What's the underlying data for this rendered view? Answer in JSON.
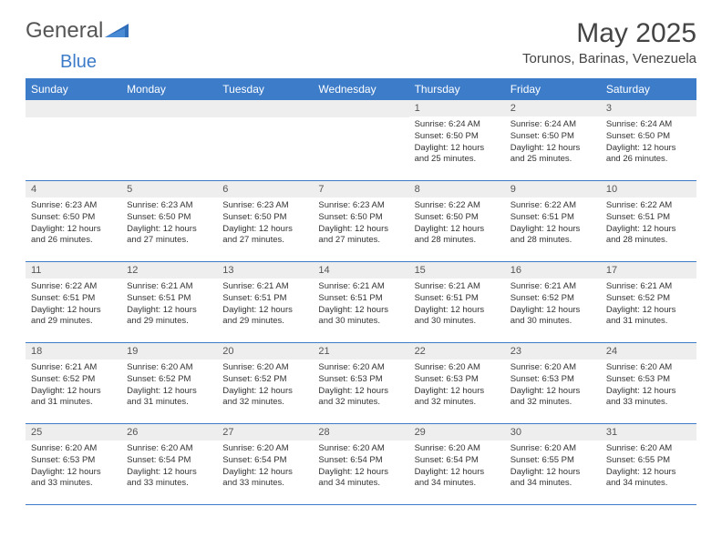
{
  "logo": {
    "text1": "General",
    "text2": "Blue"
  },
  "title": "May 2025",
  "location": "Torunos, Barinas, Venezuela",
  "colors": {
    "header_bg": "#3d7cc9",
    "header_fg": "#ffffff",
    "daynum_bg": "#eeeeee",
    "row_border": "#3d7cc9",
    "logo_accent": "#3d7cc9"
  },
  "font": {
    "body_size_pt": 9.5,
    "header_size_pt": 12,
    "title_size_pt": 30
  },
  "daynames": [
    "Sunday",
    "Monday",
    "Tuesday",
    "Wednesday",
    "Thursday",
    "Friday",
    "Saturday"
  ],
  "weeks": [
    [
      null,
      null,
      null,
      null,
      {
        "n": "1",
        "sr": "6:24 AM",
        "ss": "6:50 PM",
        "dl": "12 hours and 25 minutes."
      },
      {
        "n": "2",
        "sr": "6:24 AM",
        "ss": "6:50 PM",
        "dl": "12 hours and 25 minutes."
      },
      {
        "n": "3",
        "sr": "6:24 AM",
        "ss": "6:50 PM",
        "dl": "12 hours and 26 minutes."
      }
    ],
    [
      {
        "n": "4",
        "sr": "6:23 AM",
        "ss": "6:50 PM",
        "dl": "12 hours and 26 minutes."
      },
      {
        "n": "5",
        "sr": "6:23 AM",
        "ss": "6:50 PM",
        "dl": "12 hours and 27 minutes."
      },
      {
        "n": "6",
        "sr": "6:23 AM",
        "ss": "6:50 PM",
        "dl": "12 hours and 27 minutes."
      },
      {
        "n": "7",
        "sr": "6:23 AM",
        "ss": "6:50 PM",
        "dl": "12 hours and 27 minutes."
      },
      {
        "n": "8",
        "sr": "6:22 AM",
        "ss": "6:50 PM",
        "dl": "12 hours and 28 minutes."
      },
      {
        "n": "9",
        "sr": "6:22 AM",
        "ss": "6:51 PM",
        "dl": "12 hours and 28 minutes."
      },
      {
        "n": "10",
        "sr": "6:22 AM",
        "ss": "6:51 PM",
        "dl": "12 hours and 28 minutes."
      }
    ],
    [
      {
        "n": "11",
        "sr": "6:22 AM",
        "ss": "6:51 PM",
        "dl": "12 hours and 29 minutes."
      },
      {
        "n": "12",
        "sr": "6:21 AM",
        "ss": "6:51 PM",
        "dl": "12 hours and 29 minutes."
      },
      {
        "n": "13",
        "sr": "6:21 AM",
        "ss": "6:51 PM",
        "dl": "12 hours and 29 minutes."
      },
      {
        "n": "14",
        "sr": "6:21 AM",
        "ss": "6:51 PM",
        "dl": "12 hours and 30 minutes."
      },
      {
        "n": "15",
        "sr": "6:21 AM",
        "ss": "6:51 PM",
        "dl": "12 hours and 30 minutes."
      },
      {
        "n": "16",
        "sr": "6:21 AM",
        "ss": "6:52 PM",
        "dl": "12 hours and 30 minutes."
      },
      {
        "n": "17",
        "sr": "6:21 AM",
        "ss": "6:52 PM",
        "dl": "12 hours and 31 minutes."
      }
    ],
    [
      {
        "n": "18",
        "sr": "6:21 AM",
        "ss": "6:52 PM",
        "dl": "12 hours and 31 minutes."
      },
      {
        "n": "19",
        "sr": "6:20 AM",
        "ss": "6:52 PM",
        "dl": "12 hours and 31 minutes."
      },
      {
        "n": "20",
        "sr": "6:20 AM",
        "ss": "6:52 PM",
        "dl": "12 hours and 32 minutes."
      },
      {
        "n": "21",
        "sr": "6:20 AM",
        "ss": "6:53 PM",
        "dl": "12 hours and 32 minutes."
      },
      {
        "n": "22",
        "sr": "6:20 AM",
        "ss": "6:53 PM",
        "dl": "12 hours and 32 minutes."
      },
      {
        "n": "23",
        "sr": "6:20 AM",
        "ss": "6:53 PM",
        "dl": "12 hours and 32 minutes."
      },
      {
        "n": "24",
        "sr": "6:20 AM",
        "ss": "6:53 PM",
        "dl": "12 hours and 33 minutes."
      }
    ],
    [
      {
        "n": "25",
        "sr": "6:20 AM",
        "ss": "6:53 PM",
        "dl": "12 hours and 33 minutes."
      },
      {
        "n": "26",
        "sr": "6:20 AM",
        "ss": "6:54 PM",
        "dl": "12 hours and 33 minutes."
      },
      {
        "n": "27",
        "sr": "6:20 AM",
        "ss": "6:54 PM",
        "dl": "12 hours and 33 minutes."
      },
      {
        "n": "28",
        "sr": "6:20 AM",
        "ss": "6:54 PM",
        "dl": "12 hours and 34 minutes."
      },
      {
        "n": "29",
        "sr": "6:20 AM",
        "ss": "6:54 PM",
        "dl": "12 hours and 34 minutes."
      },
      {
        "n": "30",
        "sr": "6:20 AM",
        "ss": "6:55 PM",
        "dl": "12 hours and 34 minutes."
      },
      {
        "n": "31",
        "sr": "6:20 AM",
        "ss": "6:55 PM",
        "dl": "12 hours and 34 minutes."
      }
    ]
  ],
  "labels": {
    "sunrise": "Sunrise:",
    "sunset": "Sunset:",
    "daylight": "Daylight:"
  }
}
